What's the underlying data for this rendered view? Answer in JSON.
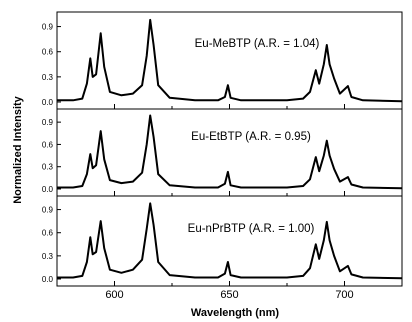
{
  "chart_data": {
    "type": "line",
    "xlabel": "Wavelength (nm)",
    "ylabel": "Normalized Intensity",
    "xlim": [
      575,
      725
    ],
    "xticks": [
      600,
      650,
      700
    ],
    "ylim": [
      0,
      1.05
    ],
    "yticks": [
      "0.0",
      "0.3",
      "0.6",
      "0.9"
    ],
    "yticks_values": [
      0.0,
      0.3,
      0.6,
      0.9
    ],
    "panels": [
      {
        "annotation": "Eu-MeBTP (A.R. = 1.04)",
        "points": [
          [
            575,
            0.02
          ],
          [
            582,
            0.02
          ],
          [
            586,
            0.04
          ],
          [
            588,
            0.22
          ],
          [
            589.5,
            0.52
          ],
          [
            590.5,
            0.3
          ],
          [
            592,
            0.33
          ],
          [
            594,
            0.82
          ],
          [
            595.5,
            0.42
          ],
          [
            598,
            0.12
          ],
          [
            603,
            0.08
          ],
          [
            608,
            0.1
          ],
          [
            612,
            0.2
          ],
          [
            614,
            0.55
          ],
          [
            615.5,
            0.98
          ],
          [
            617,
            0.68
          ],
          [
            619,
            0.2
          ],
          [
            624,
            0.05
          ],
          [
            635,
            0.02
          ],
          [
            645,
            0.02
          ],
          [
            648,
            0.06
          ],
          [
            649.3,
            0.2
          ],
          [
            650.5,
            0.05
          ],
          [
            655,
            0.02
          ],
          [
            675,
            0.02
          ],
          [
            682,
            0.04
          ],
          [
            685,
            0.12
          ],
          [
            687.5,
            0.38
          ],
          [
            689,
            0.22
          ],
          [
            691,
            0.45
          ],
          [
            692.3,
            0.68
          ],
          [
            693.5,
            0.45
          ],
          [
            695.5,
            0.28
          ],
          [
            698,
            0.1
          ],
          [
            701.5,
            0.19
          ],
          [
            703,
            0.06
          ],
          [
            708,
            0.02
          ],
          [
            725,
            0.01
          ]
        ]
      },
      {
        "annotation": "Eu-EtBTP (A.R. = 0.95)",
        "points": [
          [
            575,
            0.02
          ],
          [
            582,
            0.02
          ],
          [
            586,
            0.04
          ],
          [
            588,
            0.2
          ],
          [
            589.5,
            0.47
          ],
          [
            590.5,
            0.28
          ],
          [
            592,
            0.32
          ],
          [
            594,
            0.78
          ],
          [
            595.5,
            0.4
          ],
          [
            598,
            0.12
          ],
          [
            603,
            0.08
          ],
          [
            608,
            0.1
          ],
          [
            612,
            0.22
          ],
          [
            614,
            0.6
          ],
          [
            615.5,
            0.99
          ],
          [
            617,
            0.7
          ],
          [
            619,
            0.2
          ],
          [
            624,
            0.05
          ],
          [
            635,
            0.02
          ],
          [
            645,
            0.02
          ],
          [
            648,
            0.07
          ],
          [
            649.3,
            0.23
          ],
          [
            650.5,
            0.05
          ],
          [
            655,
            0.02
          ],
          [
            675,
            0.02
          ],
          [
            682,
            0.04
          ],
          [
            685,
            0.13
          ],
          [
            687.5,
            0.43
          ],
          [
            689,
            0.24
          ],
          [
            691,
            0.45
          ],
          [
            692.3,
            0.65
          ],
          [
            693.5,
            0.45
          ],
          [
            695.5,
            0.27
          ],
          [
            698,
            0.1
          ],
          [
            701.5,
            0.16
          ],
          [
            703,
            0.06
          ],
          [
            708,
            0.02
          ],
          [
            725,
            0.01
          ]
        ]
      },
      {
        "annotation": "Eu-nPrBTP (A.R. = 1.00)",
        "points": [
          [
            575,
            0.02
          ],
          [
            582,
            0.02
          ],
          [
            586,
            0.04
          ],
          [
            588,
            0.22
          ],
          [
            589.5,
            0.54
          ],
          [
            590.5,
            0.32
          ],
          [
            592,
            0.35
          ],
          [
            594,
            0.75
          ],
          [
            595.5,
            0.4
          ],
          [
            598,
            0.12
          ],
          [
            603,
            0.08
          ],
          [
            608,
            0.12
          ],
          [
            612,
            0.25
          ],
          [
            614,
            0.65
          ],
          [
            615.5,
            0.98
          ],
          [
            617,
            0.7
          ],
          [
            619,
            0.22
          ],
          [
            624,
            0.05
          ],
          [
            635,
            0.02
          ],
          [
            645,
            0.02
          ],
          [
            648,
            0.07
          ],
          [
            649.3,
            0.22
          ],
          [
            650.5,
            0.05
          ],
          [
            655,
            0.02
          ],
          [
            675,
            0.02
          ],
          [
            682,
            0.04
          ],
          [
            685,
            0.14
          ],
          [
            687.5,
            0.45
          ],
          [
            689,
            0.26
          ],
          [
            691,
            0.5
          ],
          [
            692.3,
            0.74
          ],
          [
            693.5,
            0.5
          ],
          [
            695.5,
            0.3
          ],
          [
            698,
            0.1
          ],
          [
            701.5,
            0.17
          ],
          [
            703,
            0.06
          ],
          [
            708,
            0.02
          ],
          [
            725,
            0.01
          ]
        ]
      }
    ]
  }
}
